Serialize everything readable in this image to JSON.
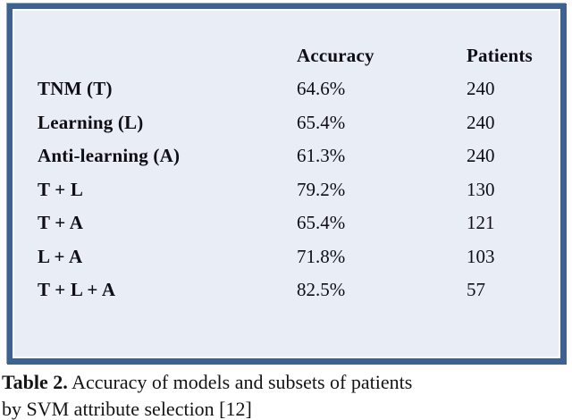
{
  "colors": {
    "panel_border": "#3d6191",
    "panel_fill": "#e9edf6",
    "text": "#0e0e14"
  },
  "table_panel": {
    "header": {
      "accuracy": "Accuracy",
      "patients": "Patients"
    },
    "rows": [
      {
        "label": "TNM (T)",
        "accuracy": "64.6%",
        "patients": "240"
      },
      {
        "label": "Learning (L)",
        "accuracy": "65.4%",
        "patients": "240"
      },
      {
        "label": "Anti-learning (A)",
        "accuracy": "61.3%",
        "patients": "240"
      },
      {
        "label": "T + L",
        "accuracy": "79.2%",
        "patients": "130"
      },
      {
        "label": "T + A",
        "accuracy": "65.4%",
        "patients": "121"
      },
      {
        "label": "L + A",
        "accuracy": "71.8%",
        "patients": "103"
      },
      {
        "label": "T + L + A",
        "accuracy": "82.5%",
        "patients": "57"
      }
    ]
  },
  "caption": {
    "title": "Table 2.",
    "line1_rest": "Accuracy of models and subsets of patients",
    "line2": "by SVM attribute selection [12]"
  }
}
